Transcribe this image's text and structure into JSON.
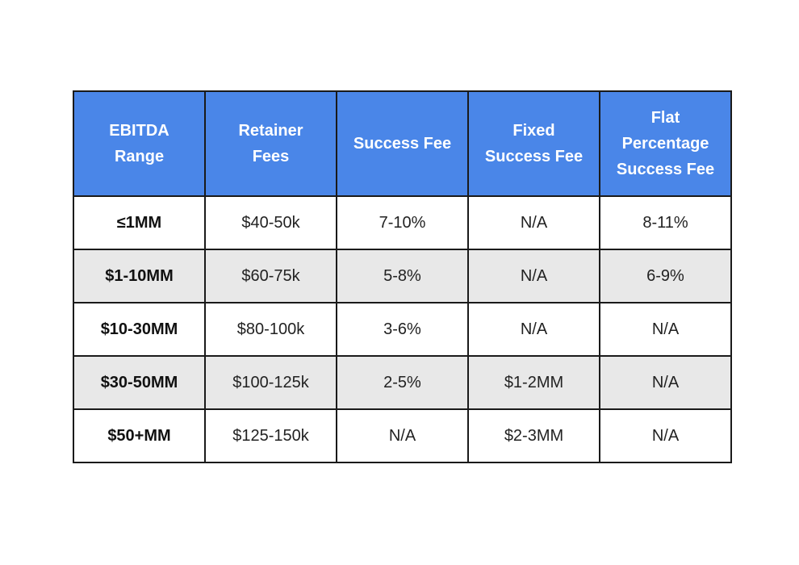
{
  "table": {
    "headers": [
      [
        "EBITDA",
        "Range"
      ],
      [
        "Retainer",
        "Fees"
      ],
      [
        "Success Fee"
      ],
      [
        "Fixed",
        "Success Fee"
      ],
      [
        "Flat",
        "Percentage",
        "Success Fee"
      ]
    ],
    "rows": [
      [
        "≤1MM",
        "$40-50k",
        "7-10%",
        "N/A",
        "8-11%"
      ],
      [
        "$1-10MM",
        "$60-75k",
        "5-8%",
        "N/A",
        "6-9%"
      ],
      [
        "$10-30MM",
        "$80-100k",
        "3-6%",
        "N/A",
        "N/A"
      ],
      [
        "$30-50MM",
        "$100-125k",
        "2-5%",
        "$1-2MM",
        "N/A"
      ],
      [
        "$50+MM",
        "$125-150k",
        "N/A",
        "$2-3MM",
        "N/A"
      ]
    ],
    "colors": {
      "header_bg": "#4a86e8",
      "header_text": "#ffffff",
      "alt_row_bg": "#e8e8e8",
      "border": "#1a1a1a"
    }
  }
}
